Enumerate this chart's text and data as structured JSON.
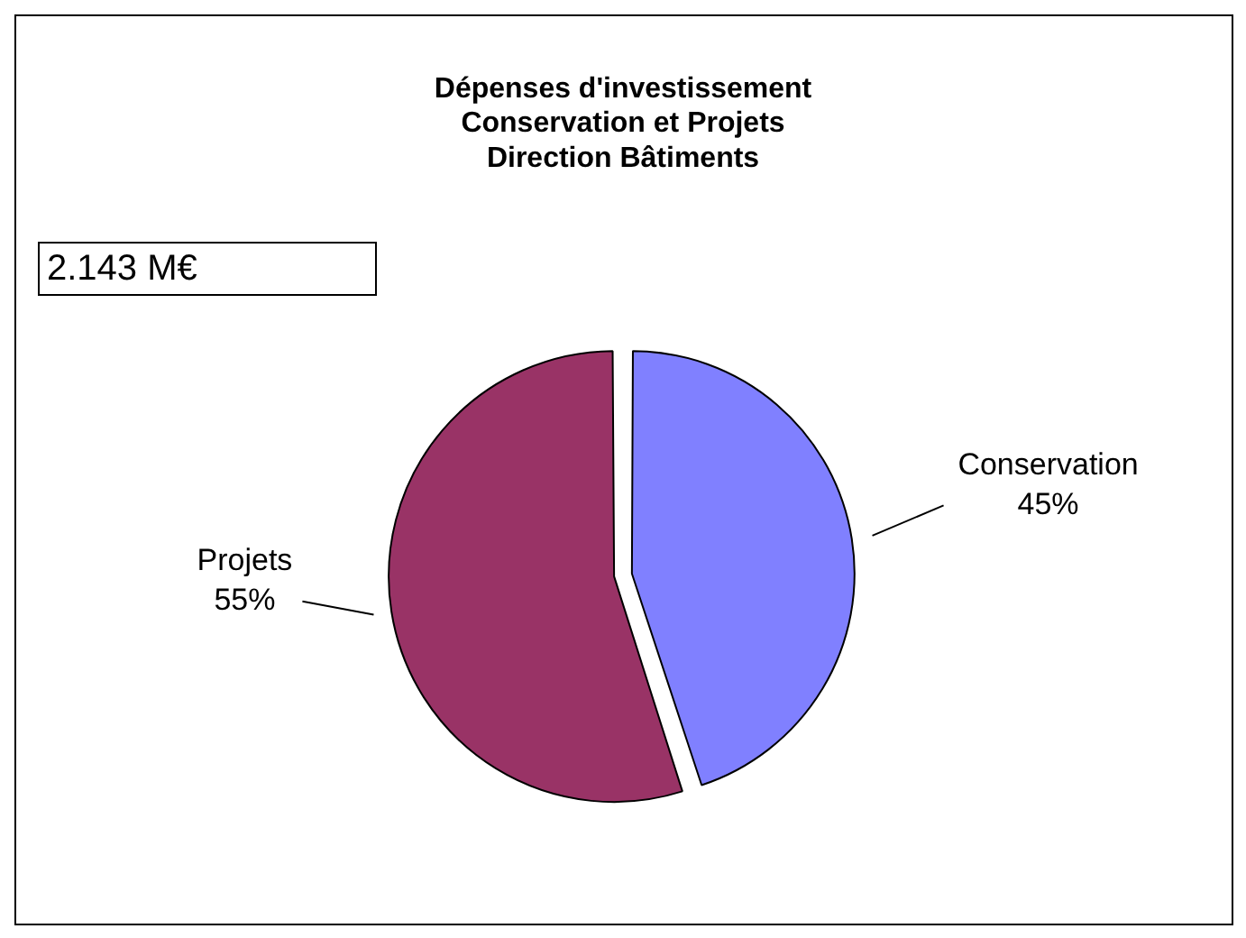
{
  "chart_data": {
    "type": "pie",
    "title": "Dépenses d'investissement\nConservation et Projets\nDirection Bâtiments",
    "categories": [
      "Conservation",
      "Projets"
    ],
    "values": [
      45,
      55
    ],
    "value_labels": [
      "45%",
      "55%"
    ],
    "colors": [
      "#8080ff",
      "#993366"
    ],
    "annotations": [
      "2.143 M€"
    ],
    "data_labels": true,
    "legend": false
  }
}
